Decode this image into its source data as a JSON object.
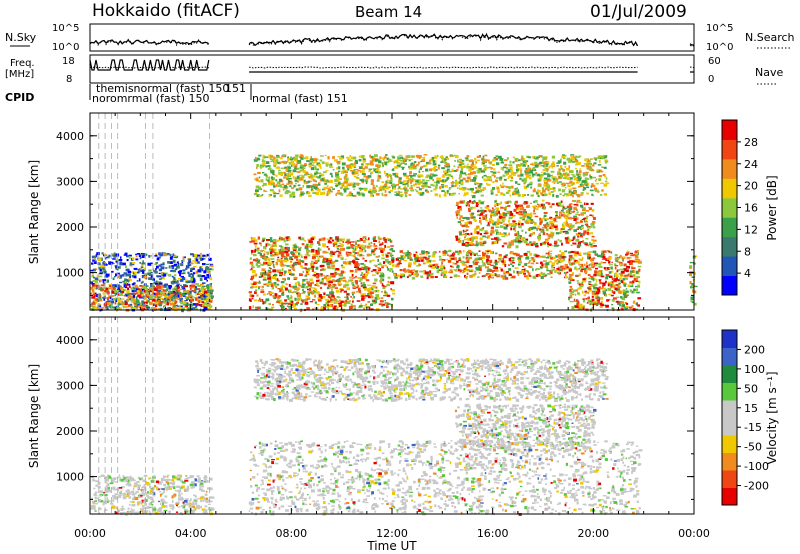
{
  "header": {
    "station": "Hokkaido (fitACF)",
    "beam": "Beam 14",
    "date": "01/Jul/2009"
  },
  "noise_panel": {
    "left_label": "N.Sky",
    "right_label": "N.Search",
    "left_ticks": [
      "10^5",
      "10^0"
    ],
    "right_ticks": [
      "10^5",
      "10^0"
    ]
  },
  "freq_panel": {
    "left_label_line1": "Freq.",
    "left_label_line2": "[MHz]",
    "right_label": "Nave",
    "left_ticks": [
      "18",
      "8"
    ],
    "right_ticks": [
      "60",
      "0"
    ]
  },
  "cpid": {
    "label": "CPID",
    "early_text": "themisnormal (fast) 150",
    "early_text_b": "noromrmal (fast) 150",
    "early_suffix": "151",
    "main_text": "normal (fast)  151"
  },
  "x_axis": {
    "label": "Time UT",
    "ticks": [
      "00:00",
      "04:00",
      "08:00",
      "12:00",
      "16:00",
      "20:00",
      "00:00"
    ]
  },
  "chart_data": [
    {
      "type": "heatmap",
      "title": "",
      "ylabel": "Slant Range [km]",
      "y_ticks": [
        "1000",
        "2000",
        "3000",
        "4000"
      ],
      "ylim": [
        180,
        4500
      ],
      "xlim_hours": [
        0,
        24
      ],
      "colorbar": {
        "label": "Power [dB]",
        "ticks": [
          "4",
          "8",
          "12",
          "16",
          "20",
          "24",
          "28"
        ],
        "range": [
          0,
          30
        ],
        "colors": [
          "#0000ff",
          "#2255b8",
          "#3a7a6e",
          "#3aa04a",
          "#8cc83c",
          "#f0c800",
          "#f08c1e",
          "#f04614",
          "#e60000"
        ]
      },
      "regions": [
        {
          "t0": 0.0,
          "t1": 4.8,
          "r0": 200,
          "r1": 1450,
          "level": "low"
        },
        {
          "t0": 0.0,
          "t1": 4.8,
          "r0": 200,
          "r1": 750,
          "level": "high"
        },
        {
          "t0": 6.3,
          "t1": 12.0,
          "r0": 200,
          "r1": 1800,
          "level": "high"
        },
        {
          "t0": 12.0,
          "t1": 19.0,
          "r0": 900,
          "r1": 1500,
          "level": "high"
        },
        {
          "t0": 14.5,
          "t1": 20.0,
          "r0": 1600,
          "r1": 2600,
          "level": "high"
        },
        {
          "t0": 6.5,
          "t1": 20.5,
          "r0": 2700,
          "r1": 3600,
          "level": "mid"
        },
        {
          "t0": 19.0,
          "t1": 21.8,
          "r0": 200,
          "r1": 1500,
          "level": "high"
        },
        {
          "t0": 23.8,
          "t1": 24.0,
          "r0": 300,
          "r1": 1400,
          "level": "mid"
        }
      ]
    },
    {
      "type": "heatmap",
      "title": "",
      "ylabel": "Slant Range [km]",
      "y_ticks": [
        "1000",
        "2000",
        "3000",
        "4000"
      ],
      "ylim": [
        180,
        4500
      ],
      "xlim_hours": [
        0,
        24
      ],
      "colorbar": {
        "label": "Velocity [m s⁻¹]",
        "ticks": [
          "200",
          "100",
          "50",
          "15",
          "-15",
          "-50",
          "-100",
          "-200"
        ],
        "range": [
          -250,
          250
        ],
        "colors": [
          "#1e32c8",
          "#3c64c8",
          "#1e8c3c",
          "#5ac83c",
          "#c8c8c8",
          "#c8c8c8",
          "#f0c800",
          "#f08c1e",
          "#f04614",
          "#e60000"
        ]
      },
      "regions": [
        {
          "t0": 0.0,
          "t1": 4.8,
          "r0": 200,
          "r1": 1050,
          "level": "zero"
        },
        {
          "t0": 6.3,
          "t1": 21.8,
          "r0": 200,
          "r1": 1800,
          "level": "zero"
        },
        {
          "t0": 14.5,
          "t1": 20.0,
          "r0": 1600,
          "r1": 2600,
          "level": "zero"
        },
        {
          "t0": 6.5,
          "t1": 20.5,
          "r0": 2700,
          "r1": 3600,
          "level": "zero"
        }
      ]
    }
  ]
}
